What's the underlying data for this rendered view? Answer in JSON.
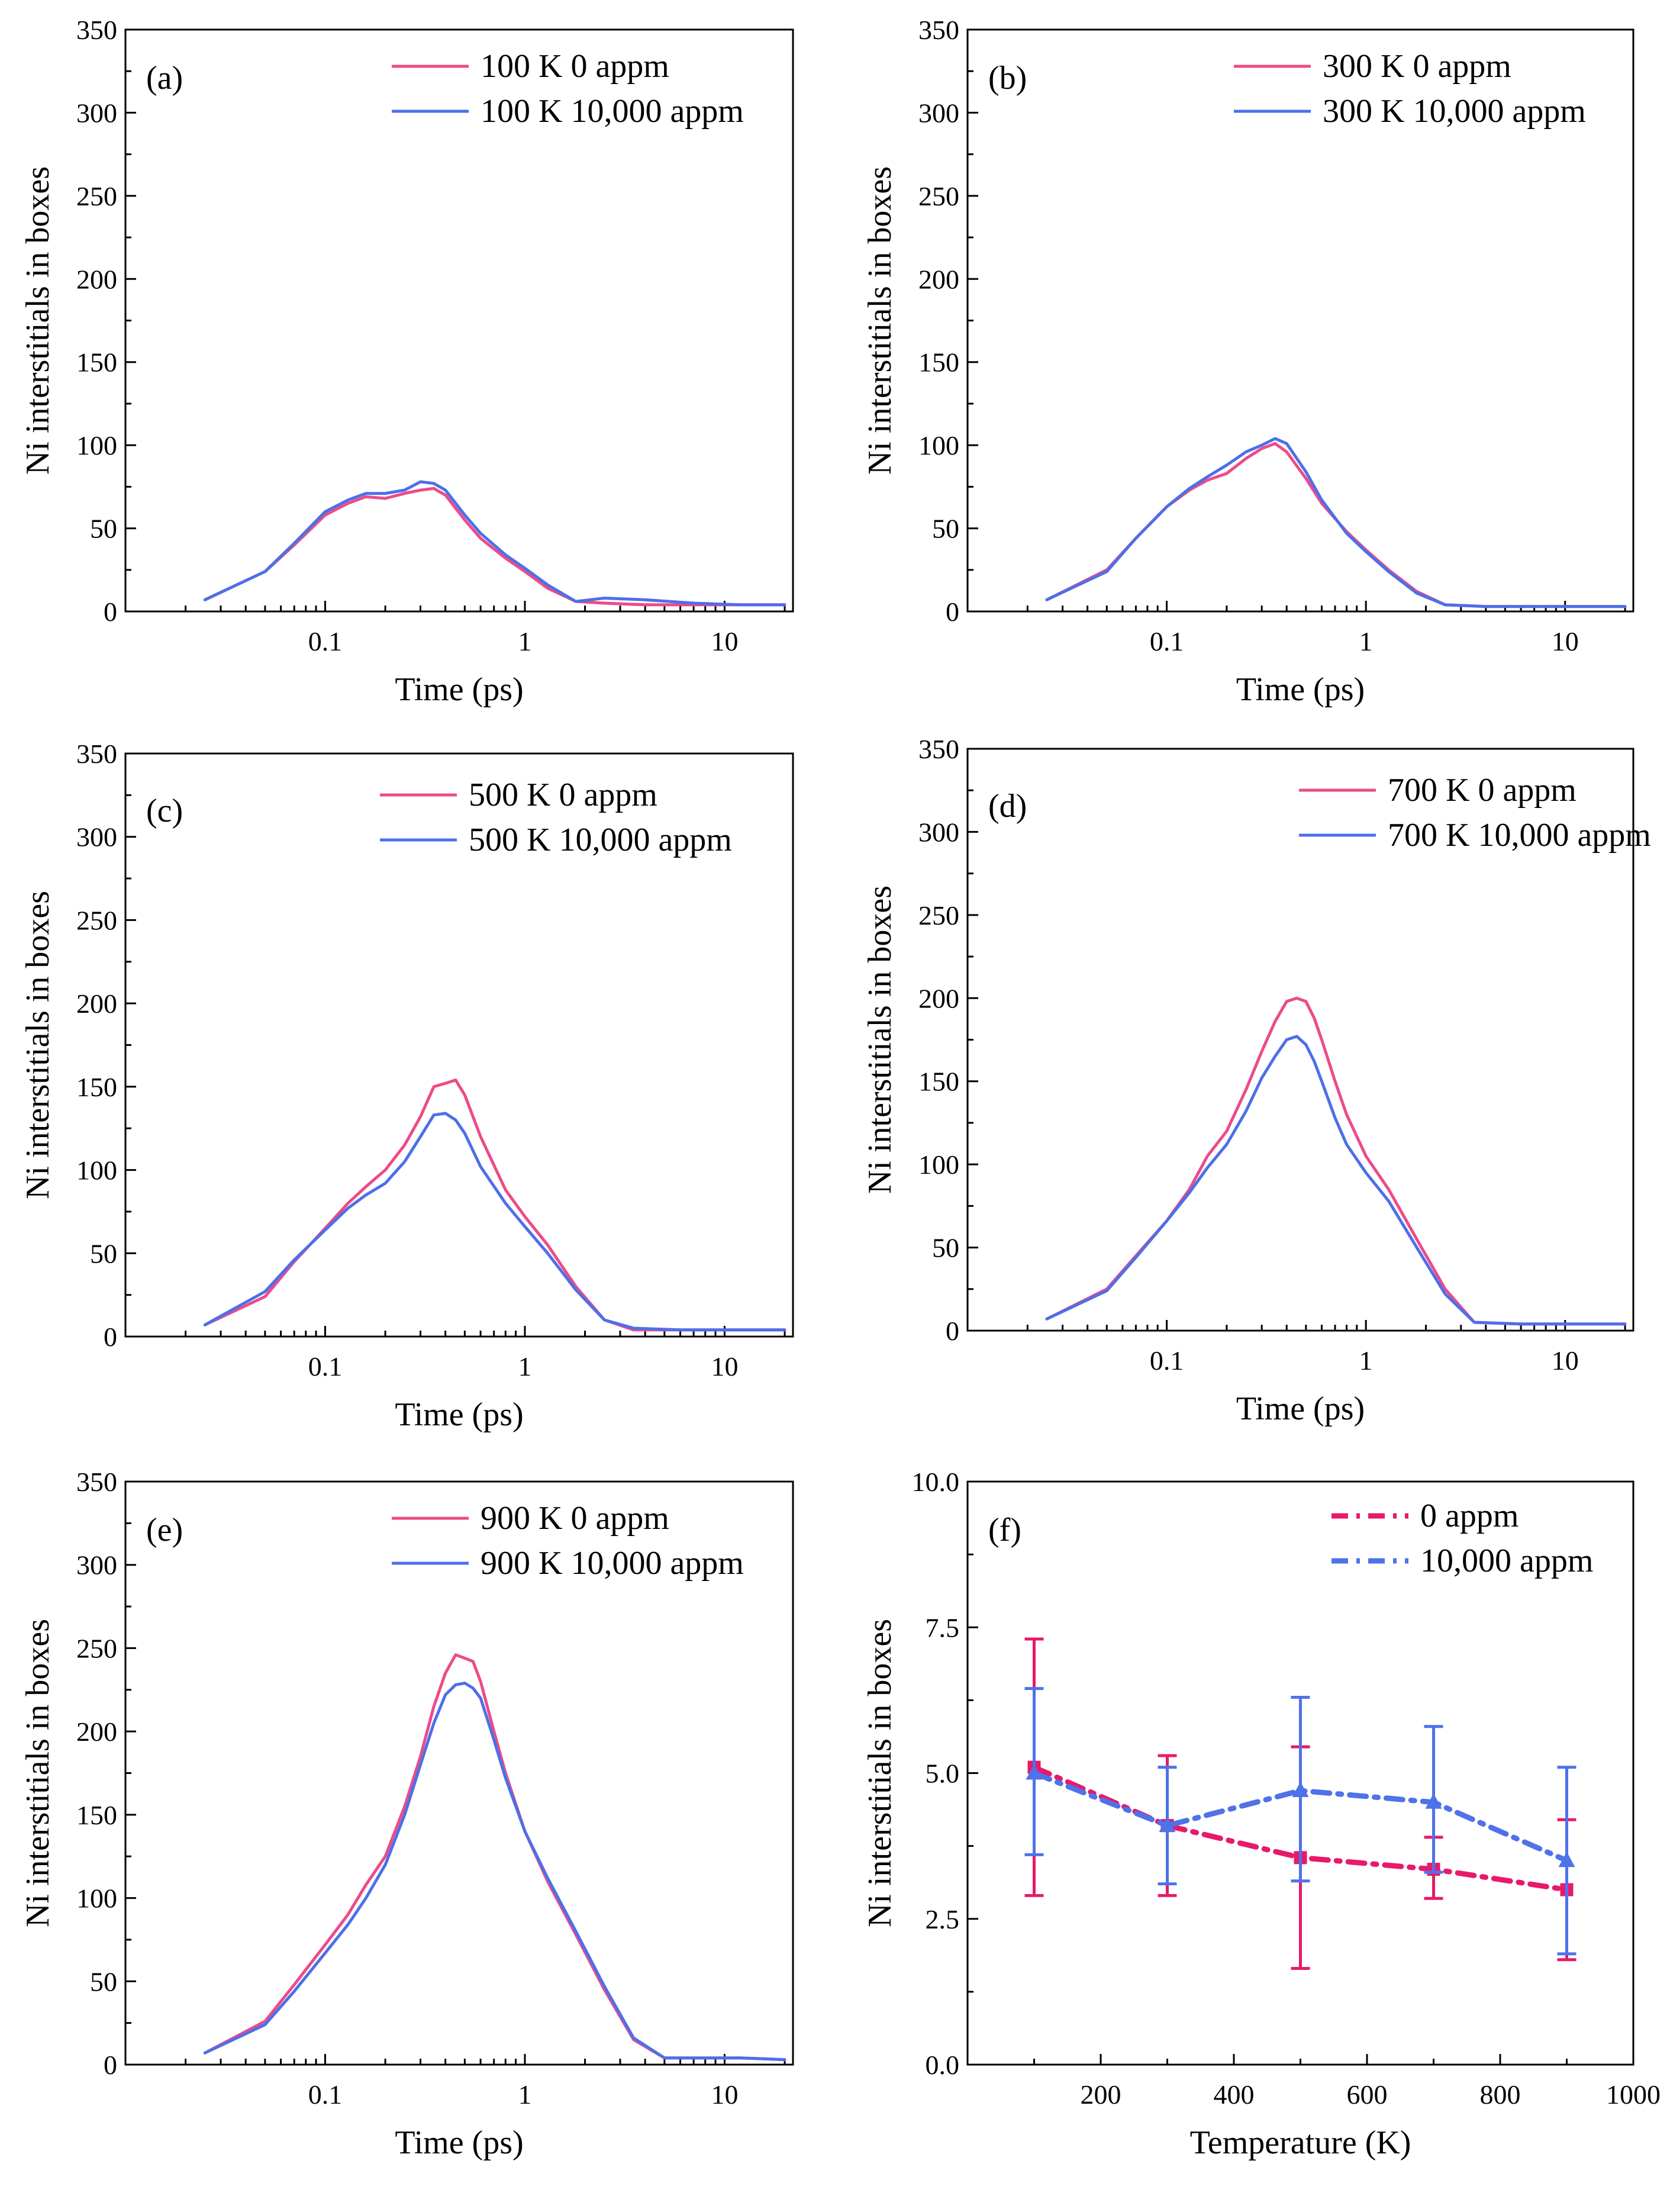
{
  "colors": {
    "pink": "#ec4b8a",
    "blue": "#4d6fe8",
    "pink_dark": "#e8196b",
    "blue_f": "#4f72e8",
    "axis": "#000000"
  },
  "chart_data": [
    {
      "id": "a",
      "type": "line",
      "panel_label": "(a)",
      "xscale": "log",
      "xlabel": "Time (ps)",
      "ylabel": "Ni interstitials in boxes",
      "xlim": [
        0.01,
        22
      ],
      "ylim": [
        0,
        350
      ],
      "xticks": [
        {
          "v": 0.1,
          "label": "0.1"
        },
        {
          "v": 1,
          "label": "1"
        },
        {
          "v": 10,
          "label": "10"
        }
      ],
      "yticks": [
        {
          "v": 0,
          "label": "0"
        },
        {
          "v": 50,
          "label": "50"
        },
        {
          "v": 100,
          "label": "100"
        },
        {
          "v": 150,
          "label": "150"
        },
        {
          "v": 200,
          "label": "200"
        },
        {
          "v": 250,
          "label": "250"
        },
        {
          "v": 300,
          "label": "300"
        },
        {
          "v": 350,
          "label": "350"
        }
      ],
      "legend_position": "top-right",
      "series": [
        {
          "name": "100 K 0 appm",
          "color": "pink",
          "x": [
            0.025,
            0.05,
            0.07,
            0.1,
            0.13,
            0.16,
            0.2,
            0.25,
            0.3,
            0.35,
            0.4,
            0.5,
            0.6,
            0.8,
            1.0,
            1.3,
            1.8,
            2.5,
            4,
            7,
            12,
            20
          ],
          "y": [
            7,
            24,
            40,
            58,
            65,
            69,
            68,
            71,
            73,
            74,
            70,
            55,
            44,
            32,
            24,
            14,
            6,
            5,
            4,
            4,
            4,
            4
          ]
        },
        {
          "name": "100 K 10,000 appm",
          "color": "blue",
          "x": [
            0.025,
            0.05,
            0.07,
            0.1,
            0.13,
            0.16,
            0.2,
            0.25,
            0.3,
            0.35,
            0.4,
            0.5,
            0.6,
            0.8,
            1.0,
            1.3,
            1.8,
            2.5,
            4,
            7,
            12,
            20
          ],
          "y": [
            7,
            24,
            41,
            60,
            67,
            71,
            71,
            73,
            78,
            77,
            73,
            58,
            47,
            34,
            26,
            16,
            6,
            8,
            7,
            5,
            4,
            4
          ]
        }
      ]
    },
    {
      "id": "b",
      "type": "line",
      "panel_label": "(b)",
      "xscale": "log",
      "xlabel": "Time (ps)",
      "ylabel": "Ni interstitials in boxes",
      "xlim": [
        0.01,
        22
      ],
      "ylim": [
        0,
        350
      ],
      "xticks": [
        {
          "v": 0.1,
          "label": "0.1"
        },
        {
          "v": 1,
          "label": "1"
        },
        {
          "v": 10,
          "label": "10"
        }
      ],
      "yticks": [
        {
          "v": 0,
          "label": "0"
        },
        {
          "v": 50,
          "label": "50"
        },
        {
          "v": 100,
          "label": "100"
        },
        {
          "v": 150,
          "label": "150"
        },
        {
          "v": 200,
          "label": "200"
        },
        {
          "v": 250,
          "label": "250"
        },
        {
          "v": 300,
          "label": "300"
        },
        {
          "v": 350,
          "label": "350"
        }
      ],
      "legend_position": "top-right",
      "series": [
        {
          "name": "300 K 0 appm",
          "color": "pink",
          "x": [
            0.025,
            0.05,
            0.07,
            0.1,
            0.13,
            0.16,
            0.2,
            0.25,
            0.3,
            0.35,
            0.4,
            0.5,
            0.6,
            0.8,
            1.0,
            1.3,
            1.8,
            2.5,
            4,
            7,
            12,
            20
          ],
          "y": [
            7,
            25,
            44,
            63,
            73,
            79,
            83,
            92,
            98,
            101,
            96,
            80,
            65,
            48,
            37,
            25,
            12,
            4,
            3,
            3,
            3,
            3
          ]
        },
        {
          "name": "300 K 10,000 appm",
          "color": "blue",
          "x": [
            0.025,
            0.05,
            0.07,
            0.1,
            0.13,
            0.16,
            0.2,
            0.25,
            0.3,
            0.35,
            0.4,
            0.5,
            0.6,
            0.8,
            1.0,
            1.3,
            1.8,
            2.5,
            4,
            7,
            12,
            20
          ],
          "y": [
            7,
            24,
            44,
            63,
            74,
            81,
            88,
            96,
            100,
            104,
            101,
            84,
            67,
            47,
            36,
            24,
            11,
            4,
            3,
            3,
            3,
            3
          ]
        }
      ]
    },
    {
      "id": "c",
      "type": "line",
      "panel_label": "(c)",
      "xscale": "log",
      "xlabel": "Time (ps)",
      "ylabel": "Ni interstitials in boxes",
      "xlim": [
        0.01,
        22
      ],
      "ylim": [
        0,
        350
      ],
      "xticks": [
        {
          "v": 0.1,
          "label": "0.1"
        },
        {
          "v": 1,
          "label": "1"
        },
        {
          "v": 10,
          "label": "10"
        }
      ],
      "yticks": [
        {
          "v": 0,
          "label": "0"
        },
        {
          "v": 50,
          "label": "50"
        },
        {
          "v": 100,
          "label": "100"
        },
        {
          "v": 150,
          "label": "150"
        },
        {
          "v": 200,
          "label": "200"
        },
        {
          "v": 250,
          "label": "250"
        },
        {
          "v": 300,
          "label": "300"
        },
        {
          "v": 350,
          "label": "350"
        }
      ],
      "legend_position": "top-right",
      "series": [
        {
          "name": "500 K 0 appm",
          "color": "pink",
          "x": [
            0.025,
            0.05,
            0.07,
            0.1,
            0.13,
            0.16,
            0.2,
            0.25,
            0.3,
            0.35,
            0.4,
            0.45,
            0.5,
            0.6,
            0.8,
            1.0,
            1.3,
            1.8,
            2.5,
            3.5,
            6,
            12,
            20
          ],
          "y": [
            7,
            24,
            45,
            65,
            80,
            90,
            100,
            115,
            132,
            150,
            152,
            154,
            145,
            120,
            88,
            72,
            55,
            30,
            10,
            4,
            4,
            4,
            4
          ]
        },
        {
          "name": "500 K 10,000 appm",
          "color": "blue",
          "x": [
            0.025,
            0.05,
            0.07,
            0.1,
            0.13,
            0.16,
            0.2,
            0.25,
            0.3,
            0.35,
            0.4,
            0.45,
            0.5,
            0.6,
            0.8,
            1.0,
            1.3,
            1.8,
            2.5,
            3.5,
            6,
            12,
            20
          ],
          "y": [
            7,
            27,
            46,
            64,
            77,
            85,
            92,
            105,
            120,
            133,
            134,
            130,
            122,
            102,
            80,
            66,
            50,
            28,
            10,
            5,
            4,
            4,
            4
          ]
        }
      ]
    },
    {
      "id": "d",
      "type": "line",
      "panel_label": "(d)",
      "xscale": "log",
      "xlabel": "Time (ps)",
      "ylabel": "Ni interstitials in boxes",
      "xlim": [
        0.01,
        22
      ],
      "ylim": [
        0,
        350
      ],
      "xticks": [
        {
          "v": 0.1,
          "label": "0.1"
        },
        {
          "v": 1,
          "label": "1"
        },
        {
          "v": 10,
          "label": "10"
        }
      ],
      "yticks": [
        {
          "v": 0,
          "label": "0"
        },
        {
          "v": 50,
          "label": "50"
        },
        {
          "v": 100,
          "label": "100"
        },
        {
          "v": 150,
          "label": "150"
        },
        {
          "v": 200,
          "label": "200"
        },
        {
          "v": 250,
          "label": "250"
        },
        {
          "v": 300,
          "label": "300"
        },
        {
          "v": 350,
          "label": "350"
        }
      ],
      "legend_position": "top-right",
      "series": [
        {
          "name": "700 K 0 appm",
          "color": "pink",
          "x": [
            0.025,
            0.05,
            0.07,
            0.1,
            0.13,
            0.16,
            0.2,
            0.25,
            0.3,
            0.35,
            0.4,
            0.45,
            0.5,
            0.55,
            0.6,
            0.7,
            0.8,
            1.0,
            1.3,
            1.8,
            2.5,
            3.5,
            6,
            12,
            20
          ],
          "y": [
            7,
            25,
            45,
            66,
            85,
            105,
            120,
            145,
            168,
            186,
            198,
            200,
            198,
            188,
            175,
            150,
            130,
            105,
            85,
            55,
            25,
            5,
            4,
            4,
            4
          ]
        },
        {
          "name": "700 K 10,000 appm",
          "color": "blue",
          "x": [
            0.025,
            0.05,
            0.07,
            0.1,
            0.13,
            0.16,
            0.2,
            0.25,
            0.3,
            0.35,
            0.4,
            0.45,
            0.5,
            0.55,
            0.6,
            0.7,
            0.8,
            1.0,
            1.3,
            1.8,
            2.5,
            3.5,
            6,
            12,
            20
          ],
          "y": [
            7,
            24,
            44,
            66,
            83,
            98,
            112,
            132,
            152,
            165,
            175,
            177,
            172,
            162,
            150,
            128,
            112,
            95,
            78,
            50,
            22,
            5,
            4,
            4,
            4
          ]
        }
      ]
    },
    {
      "id": "e",
      "type": "line",
      "panel_label": "(e)",
      "xscale": "log",
      "xlabel": "Time (ps)",
      "ylabel": "Ni interstitials in boxes",
      "xlim": [
        0.01,
        22
      ],
      "ylim": [
        0,
        350
      ],
      "xticks": [
        {
          "v": 0.1,
          "label": "0.1"
        },
        {
          "v": 1,
          "label": "1"
        },
        {
          "v": 10,
          "label": "10"
        }
      ],
      "yticks": [
        {
          "v": 0,
          "label": "0"
        },
        {
          "v": 50,
          "label": "50"
        },
        {
          "v": 100,
          "label": "100"
        },
        {
          "v": 150,
          "label": "150"
        },
        {
          "v": 200,
          "label": "200"
        },
        {
          "v": 250,
          "label": "250"
        },
        {
          "v": 300,
          "label": "300"
        },
        {
          "v": 350,
          "label": "350"
        }
      ],
      "legend_position": "top-right",
      "series": [
        {
          "name": "900 K 0 appm",
          "color": "pink",
          "x": [
            0.025,
            0.05,
            0.07,
            0.1,
            0.13,
            0.16,
            0.2,
            0.25,
            0.3,
            0.35,
            0.4,
            0.45,
            0.5,
            0.55,
            0.6,
            0.7,
            0.8,
            1.0,
            1.3,
            1.8,
            2.5,
            3.5,
            5,
            8,
            12,
            20
          ],
          "y": [
            7,
            26,
            48,
            72,
            90,
            108,
            125,
            155,
            185,
            215,
            235,
            246,
            244,
            242,
            230,
            200,
            175,
            140,
            110,
            78,
            45,
            15,
            4,
            4,
            4,
            3
          ]
        },
        {
          "name": "900 K 10,000 appm",
          "color": "blue",
          "x": [
            0.025,
            0.05,
            0.07,
            0.1,
            0.13,
            0.16,
            0.2,
            0.25,
            0.3,
            0.35,
            0.4,
            0.45,
            0.5,
            0.55,
            0.6,
            0.7,
            0.8,
            1.0,
            1.3,
            1.8,
            2.5,
            3.5,
            5,
            8,
            12,
            20
          ],
          "y": [
            7,
            24,
            44,
            67,
            84,
            100,
            120,
            150,
            180,
            205,
            222,
            228,
            229,
            226,
            220,
            195,
            172,
            140,
            112,
            80,
            47,
            16,
            4,
            4,
            4,
            3
          ]
        }
      ]
    },
    {
      "id": "f",
      "type": "line",
      "panel_label": "(f)",
      "xscale": "linear",
      "xlabel": "Temperature (K)",
      "ylabel": "Ni interstitials in boxes",
      "xlim": [
        0,
        1000
      ],
      "ylim": [
        0,
        10
      ],
      "xticks": [
        {
          "v": 200,
          "label": "200"
        },
        {
          "v": 400,
          "label": "400"
        },
        {
          "v": 600,
          "label": "600"
        },
        {
          "v": 800,
          "label": "800"
        },
        {
          "v": 1000,
          "label": "1000"
        }
      ],
      "yticks": [
        {
          "v": 0,
          "label": "0.0"
        },
        {
          "v": 2.5,
          "label": "2.5"
        },
        {
          "v": 5,
          "label": "5.0"
        },
        {
          "v": 7.5,
          "label": "7.5"
        },
        {
          "v": 10,
          "label": "10.0"
        }
      ],
      "legend_position": "top-right",
      "series": [
        {
          "name": "0 appm",
          "color": "pink_dark",
          "marker": "square",
          "x": [
            100,
            300,
            500,
            700,
            900
          ],
          "y": [
            5.1,
            4.1,
            3.55,
            3.35,
            3.0
          ],
          "yerr_low": [
            2.9,
            2.9,
            1.65,
            2.85,
            1.8
          ],
          "yerr_high": [
            7.3,
            5.3,
            5.45,
            3.9,
            4.2
          ]
        },
        {
          "name": "10,000 appm",
          "color": "blue_f",
          "marker": "triangle",
          "x": [
            100,
            300,
            500,
            700,
            900
          ],
          "y": [
            5.0,
            4.1,
            4.7,
            4.5,
            3.5
          ],
          "yerr_low": [
            3.6,
            3.1,
            3.15,
            3.3,
            1.9
          ],
          "yerr_high": [
            6.45,
            5.1,
            6.3,
            5.8,
            5.1
          ]
        }
      ]
    }
  ]
}
